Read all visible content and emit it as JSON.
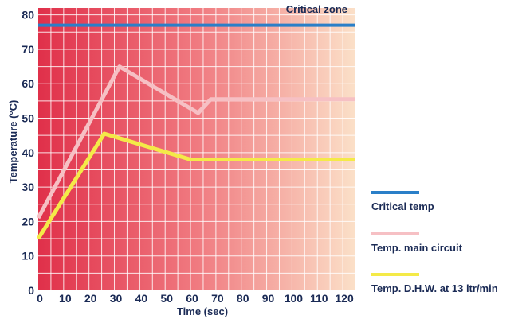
{
  "chart_data": {
    "type": "line",
    "xlabel": "Time (sec)",
    "ylabel": "Temperature (°C)",
    "xlim": [
      0,
      125
    ],
    "ylim": [
      0,
      82
    ],
    "x_ticks": [
      0,
      10,
      20,
      30,
      40,
      50,
      60,
      70,
      80,
      90,
      100,
      110,
      120
    ],
    "y_ticks": [
      0,
      10,
      20,
      30,
      40,
      50,
      60,
      70,
      80
    ],
    "grid": true,
    "legend_position": "right",
    "annotation": "Critical zone",
    "background_gradient": [
      "#e0304a",
      "#f07a80",
      "#fbe0c8"
    ],
    "series": [
      {
        "name": "Critical temp",
        "color": "#2a7fc8",
        "points": [
          [
            0,
            77
          ],
          [
            125,
            77
          ]
        ]
      },
      {
        "name": "Temp. main circuit",
        "color": "#f6c0c4",
        "points": [
          [
            0,
            21
          ],
          [
            32,
            65
          ],
          [
            63,
            51.5
          ],
          [
            68,
            55.5
          ],
          [
            125,
            55.5
          ]
        ]
      },
      {
        "name": "Temp. D.H.W. at 13 ltr/min",
        "color": "#f4ea48",
        "points": [
          [
            0,
            15
          ],
          [
            26,
            45.5
          ],
          [
            60,
            38
          ],
          [
            125,
            38
          ]
        ]
      }
    ]
  }
}
